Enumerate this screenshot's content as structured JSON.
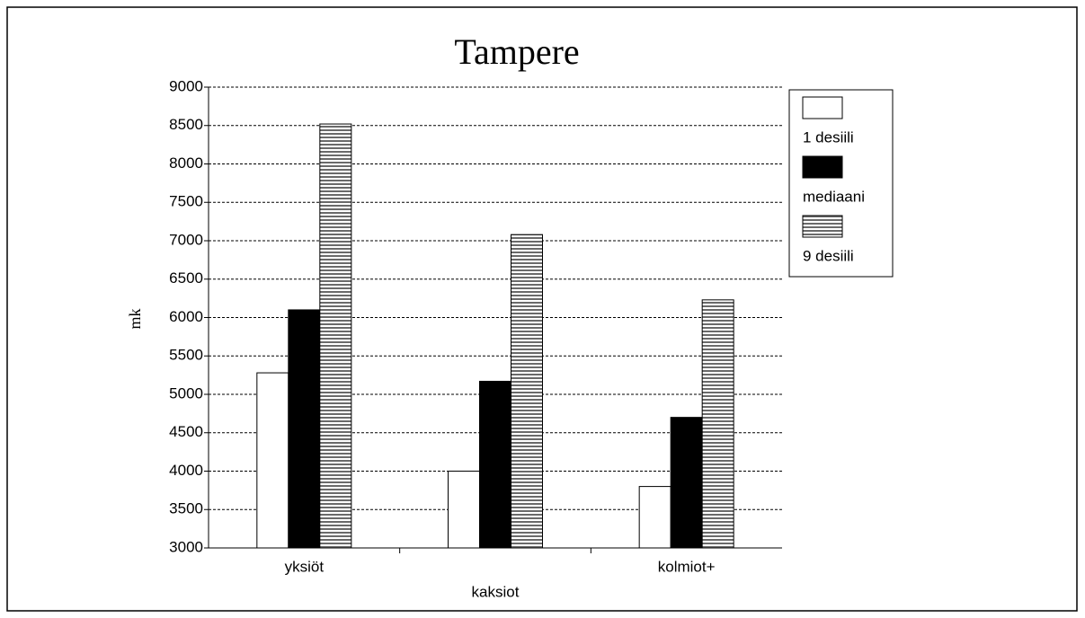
{
  "chart_data": {
    "type": "bar",
    "title": "Tampere",
    "y_label": "mk",
    "categories": [
      "yksiöt",
      "kaksiot",
      "kolmiot+"
    ],
    "series": [
      {
        "name": "1 desiili",
        "color": "#ffffff",
        "values": [
          5280,
          4000,
          3800
        ]
      },
      {
        "name": "mediaani",
        "color": "#000000",
        "values": [
          6100,
          5170,
          4700
        ]
      },
      {
        "name": "9 desiili",
        "color": "#8a8a8a",
        "values": [
          8520,
          7080,
          6230
        ]
      }
    ],
    "ylim": [
      3000,
      9000
    ],
    "yticks": [
      3000,
      3500,
      4000,
      4500,
      5000,
      5500,
      6000,
      6500,
      7000,
      7500,
      8000,
      8500,
      9000
    ],
    "grid": true,
    "legend": "right"
  }
}
